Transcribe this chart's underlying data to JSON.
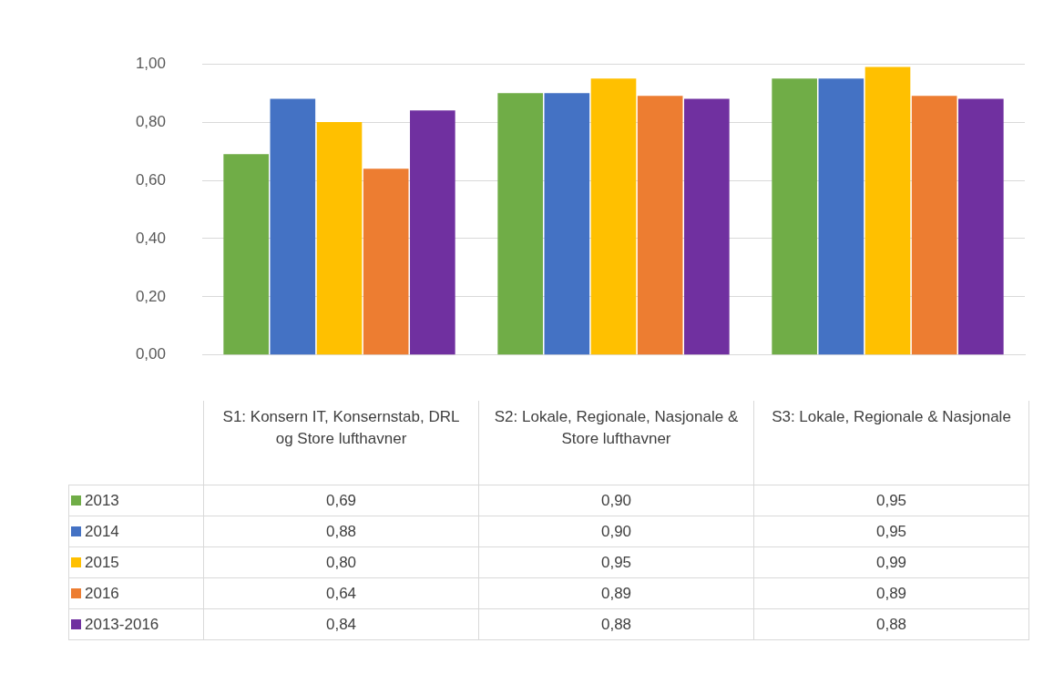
{
  "chart_data": {
    "type": "bar",
    "categories": [
      "S1: Konsern IT, Konsernstab, DRL og Store lufthavner",
      "S2: Lokale, Regionale, Nasjonale & Store lufthavner",
      "S3: Lokale, Regionale & Nasjonale"
    ],
    "series": [
      {
        "name": "2013",
        "color": "#70ad47",
        "values": [
          0.69,
          0.9,
          0.95
        ],
        "value_labels": [
          "0,69",
          "0,90",
          "0,95"
        ]
      },
      {
        "name": "2014",
        "color": "#4472c4",
        "values": [
          0.88,
          0.9,
          0.95
        ],
        "value_labels": [
          "0,88",
          "0,90",
          "0,95"
        ]
      },
      {
        "name": "2015",
        "color": "#ffc000",
        "values": [
          0.8,
          0.95,
          0.99
        ],
        "value_labels": [
          "0,80",
          "0,95",
          "0,99"
        ]
      },
      {
        "name": "2016",
        "color": "#ed7d31",
        "values": [
          0.64,
          0.89,
          0.89
        ],
        "value_labels": [
          "0,64",
          "0,89",
          "0,89"
        ]
      },
      {
        "name": "2013-2016",
        "color": "#7030a0",
        "values": [
          0.84,
          0.88,
          0.88
        ],
        "value_labels": [
          "0,84",
          "0,88",
          "0,88"
        ]
      }
    ],
    "ylim": [
      0,
      1
    ],
    "yticks": [
      {
        "value": 0,
        "label": "0,00"
      },
      {
        "value": 0.2,
        "label": "0,20"
      },
      {
        "value": 0.4,
        "label": "0,40"
      },
      {
        "value": 0.6,
        "label": "0,60"
      },
      {
        "value": 0.8,
        "label": "0,80"
      },
      {
        "value": 1,
        "label": "1,00"
      }
    ],
    "grid": "y",
    "legend": "bottom left"
  }
}
